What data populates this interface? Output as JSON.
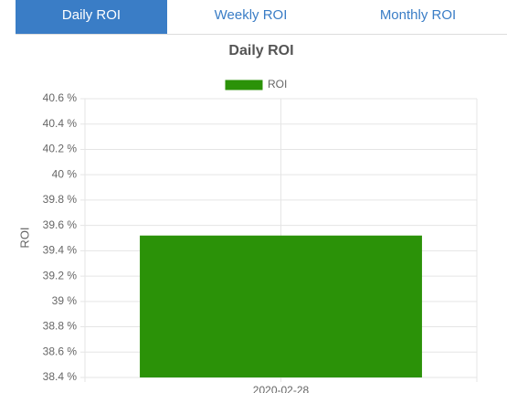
{
  "tabs": [
    {
      "label": "Daily ROI",
      "active": true
    },
    {
      "label": "Weekly ROI",
      "active": false
    },
    {
      "label": "Monthly ROI",
      "active": false
    }
  ],
  "chart_data": {
    "type": "bar",
    "title": "Daily ROI",
    "y_label": "ROI",
    "categories": [
      "2020-02-28"
    ],
    "series": [
      {
        "name": "ROI",
        "color": "#2b9208",
        "values": [
          39.52
        ]
      }
    ],
    "ylim": [
      38.4,
      40.6
    ],
    "yticks": [
      {
        "value": 38.4,
        "label": "38.4 %"
      },
      {
        "value": 38.6,
        "label": "38.6 %"
      },
      {
        "value": 38.8,
        "label": "38.8 %"
      },
      {
        "value": 39,
        "label": "39 %"
      },
      {
        "value": 39.2,
        "label": "39.2 %"
      },
      {
        "value": 39.4,
        "label": "39.4 %"
      },
      {
        "value": 39.6,
        "label": "39.6 %"
      },
      {
        "value": 39.8,
        "label": "39.8 %"
      },
      {
        "value": 40,
        "label": "40 %"
      },
      {
        "value": 40.2,
        "label": "40.2 %"
      },
      {
        "value": 40.4,
        "label": "40.4 %"
      },
      {
        "value": 40.6,
        "label": "40.6 %"
      }
    ],
    "grid": true
  }
}
